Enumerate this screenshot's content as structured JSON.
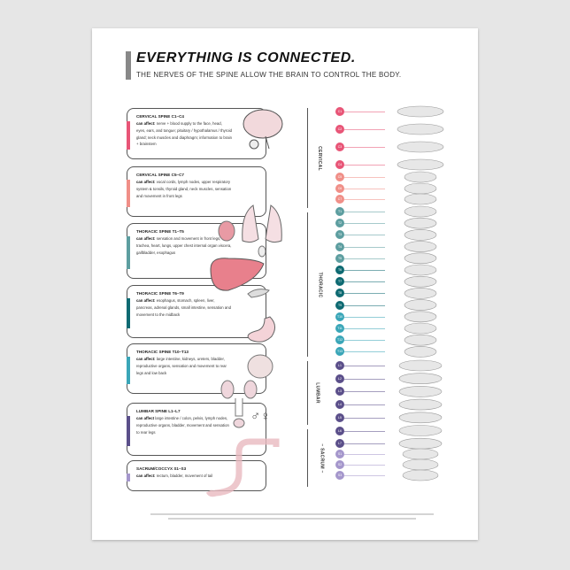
{
  "header": {
    "title": "EVERYTHING IS CONNECTED.",
    "subtitle": "THE NERVES OF THE SPINE ALLOW THE BRAIN TO CONTROL THE BODY."
  },
  "sections": [
    {
      "heading": "CERVICAL SPINE C1–C4",
      "label": "can affect:",
      "text": "nerve + blood supply to the face, head, eyes, ears, and tongue; pituitary / hypothalamus / thyroid gland; neck muscles and diaphragm; information to brain + brainstem",
      "color": "#e85577"
    },
    {
      "heading": "CERVICAL SPINE C5–C7",
      "label": "can affect:",
      "text": "vocal cords, lymph nodes, upper respiratory system & tonsils, thyroid gland, neck muscles, sensation and movement in front legs",
      "color": "#f08f88"
    },
    {
      "heading": "THORACIC SPINE T1–T5",
      "label": "can affect:",
      "text": "sensation and movement in front legs, trachea, heart, lungs, upper chest internal organ viscera, gallbladder, esophagus",
      "color": "#5d9ea0"
    },
    {
      "heading": "THORACIC SPINE T6–T9",
      "label": "can affect:",
      "text": "esophagus, stomach, spleen, liver, pancreas, adrenal glands, small intestine, sensation and movement to the midback",
      "color": "#0e6a72"
    },
    {
      "heading": "THORACIC SPINE T10–T13",
      "label": "can affect:",
      "text": "large intestine, kidneys, ureters, bladder, reproductive organs, sensation and movement to rear legs and low back",
      "color": "#3aa6b8"
    },
    {
      "heading": "LUMBAR SPINE L1–L7",
      "label": "can affect",
      "text": "large intestine / colon, pelvis, lymph nodes, reproductive organs, bladder, movement and sensation to rear legs",
      "color": "#5b4f8a"
    },
    {
      "heading": "SACRUM/COCCYX S1–S3",
      "label": "can affect:",
      "text": "rectum, bladder, movement of tail",
      "color": "#a597cc"
    }
  ],
  "regions": [
    "CERVICAL",
    "THORACIC",
    "LUMBAR",
    "– SACRUM –"
  ],
  "sex_symbols": "♂♀",
  "vertebrae": [
    {
      "label": "C1",
      "color": "#e85577"
    },
    {
      "label": "C2",
      "color": "#e85577"
    },
    {
      "label": "C3",
      "color": "#e85577"
    },
    {
      "label": "C4",
      "color": "#e85577"
    },
    {
      "label": "C5",
      "color": "#f08f88"
    },
    {
      "label": "C6",
      "color": "#f08f88"
    },
    {
      "label": "C7",
      "color": "#f08f88"
    },
    {
      "label": "T1",
      "color": "#5d9ea0"
    },
    {
      "label": "T2",
      "color": "#5d9ea0"
    },
    {
      "label": "T3",
      "color": "#5d9ea0"
    },
    {
      "label": "T4",
      "color": "#5d9ea0"
    },
    {
      "label": "T5",
      "color": "#5d9ea0"
    },
    {
      "label": "T6",
      "color": "#0e6a72"
    },
    {
      "label": "T7",
      "color": "#0e6a72"
    },
    {
      "label": "T8",
      "color": "#0e6a72"
    },
    {
      "label": "T9",
      "color": "#0e6a72"
    },
    {
      "label": "T10",
      "color": "#3aa6b8"
    },
    {
      "label": "T11",
      "color": "#3aa6b8"
    },
    {
      "label": "T12",
      "color": "#3aa6b8"
    },
    {
      "label": "T13",
      "color": "#3aa6b8"
    },
    {
      "label": "L1",
      "color": "#5b4f8a"
    },
    {
      "label": "L2",
      "color": "#5b4f8a"
    },
    {
      "label": "L3",
      "color": "#5b4f8a"
    },
    {
      "label": "L4",
      "color": "#5b4f8a"
    },
    {
      "label": "L5",
      "color": "#5b4f8a"
    },
    {
      "label": "L6",
      "color": "#5b4f8a"
    },
    {
      "label": "L7",
      "color": "#5b4f8a"
    },
    {
      "label": "S1",
      "color": "#a597cc"
    },
    {
      "label": "S2",
      "color": "#a597cc"
    },
    {
      "label": "S3",
      "color": "#a597cc"
    }
  ]
}
